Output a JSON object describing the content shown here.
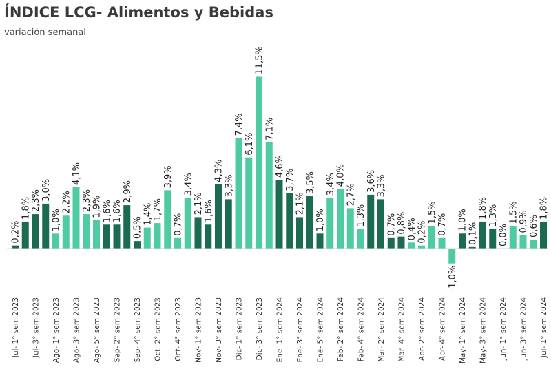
{
  "chart_data": {
    "type": "bar",
    "title": "ÍNDICE LCG- Alimentos y Bebidas",
    "subtitle": "variación semanal",
    "tick_labels": [
      "Jul- 1° sem.2023",
      "Jul- 3° sem.2023",
      "Ago- 1° sem.2023",
      "Ago- 3° sem.2023",
      "Ago- 5° sem.2023",
      "Sep- 2° sem.2023",
      "Sep- 4° sem.2023",
      "Oct- 2° sem.2023",
      "Oct- 4° sem.2023",
      "Nov- 1° sem.2023",
      "Nov- 3° sem.2023",
      "Dic- 1° sem 2023",
      "Dic- 3° sem 2023",
      "Ene- 1° sem 2024",
      "Ene- 3° sem 2024",
      "Ene- 5° sem 2024",
      "Feb- 2° sem 2024",
      "Feb- 4° sem 2024",
      "Mar- 2° sem 2024",
      "Mar- 4° sem 2024",
      "Abr- 2° sem 2024",
      "Abr- 4° sem 2024",
      "May- 1° sem 2024",
      "May- 3° sem 2024",
      "Jun- 1° sem 2024",
      "Jun- 3° sem 2024",
      "Jul- 1° sem 2024"
    ],
    "values": [
      0.2,
      1.8,
      2.3,
      3.0,
      1.0,
      2.2,
      4.1,
      2.3,
      1.9,
      1.6,
      1.6,
      2.9,
      0.5,
      1.4,
      1.7,
      3.9,
      0.7,
      3.4,
      2.1,
      1.6,
      4.3,
      3.3,
      7.4,
      6.1,
      11.5,
      7.1,
      4.6,
      3.7,
      2.1,
      3.5,
      1.0,
      3.4,
      4.0,
      2.7,
      1.3,
      3.6,
      3.3,
      0.7,
      0.8,
      0.4,
      0.2,
      1.5,
      0.7,
      -1.0,
      1.0,
      0.1,
      1.8,
      1.3,
      0.0,
      1.5,
      0.9,
      0.6,
      1.8
    ],
    "value_labels": [
      "0,2%",
      "1,8%",
      "2,3%",
      "3,0%",
      "1,0%",
      "2,2%",
      "4,1%",
      "2,3%",
      "1,9%",
      "1,6%",
      "1,6%",
      "2,9%",
      "0,5%",
      "1,4%",
      "1,7%",
      "3,9%",
      "0,7%",
      "3,4%",
      "2,1%",
      "1,6%",
      "4,3%",
      "3,3%",
      "7,4%",
      "6,1%",
      "11,5%",
      "7,1%",
      "4,6%",
      "3,7%",
      "2,1%",
      "3,5%",
      "1,0%",
      "3,4%",
      "4,0%",
      "2,7%",
      "1,3%",
      "3,6%",
      "3,3%",
      "0,7%",
      "0,8%",
      "0,4%",
      "0,2%",
      "1,5%",
      "0,7%",
      "-1,0%",
      "1,0%",
      "0,1%",
      "1,8%",
      "1,3%",
      "0,0%",
      "1,5%",
      "0,9%",
      "0,6%",
      "1,8%"
    ],
    "color_group": [
      "d",
      "d",
      "d",
      "d",
      "l",
      "l",
      "l",
      "l",
      "l",
      "d",
      "d",
      "d",
      "d",
      "l",
      "l",
      "l",
      "l",
      "l",
      "d",
      "d",
      "d",
      "d",
      "l",
      "l",
      "l",
      "l",
      "d",
      "d",
      "d",
      "d",
      "d",
      "l",
      "l",
      "l",
      "l",
      "d",
      "d",
      "d",
      "d",
      "l",
      "l",
      "l",
      "l",
      "l",
      "d",
      "d",
      "d",
      "d",
      "l",
      "l",
      "l",
      "l",
      "d"
    ],
    "colors": {
      "d": "#1b6b50",
      "l": "#4ecba0"
    },
    "ylim": [
      -1.5,
      12
    ],
    "grid": false,
    "legend": "none"
  }
}
